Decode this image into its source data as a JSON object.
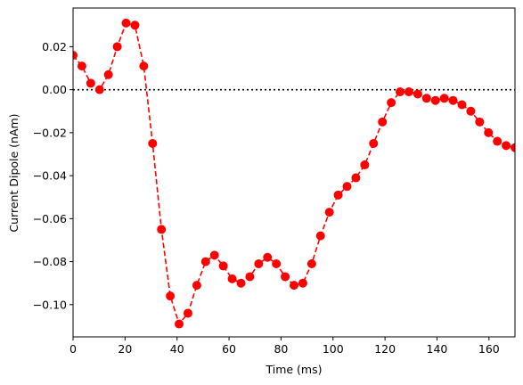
{
  "chart_data": {
    "type": "line",
    "xlabel": "Time (ms)",
    "ylabel": "Current Dipole (nAm)",
    "xlim": [
      0,
      170
    ],
    "ylim": [
      -0.115,
      0.038
    ],
    "x_ticks": [
      0,
      20,
      40,
      60,
      80,
      100,
      120,
      140,
      160
    ],
    "y_ticks": [
      -0.1,
      -0.08,
      -0.06,
      -0.04,
      -0.02,
      0.0,
      0.02
    ],
    "x_tick_labels": [
      "0",
      "20",
      "40",
      "60",
      "80",
      "100",
      "120",
      "140",
      "160"
    ],
    "y_tick_labels": [
      "−0.10",
      "−0.08",
      "−0.06",
      "−0.04",
      "−0.02",
      "0.00",
      "0.02"
    ],
    "grid": false,
    "reference_line": {
      "y": 0.0,
      "style": "dotted",
      "color": "#000000"
    },
    "series": [
      {
        "color": "#ff0000",
        "line_style": "dashed",
        "marker": "circle",
        "x": [
          0,
          3.4,
          6.8,
          10.2,
          13.6,
          17.0,
          20.4,
          23.8,
          27.2,
          30.6,
          34.0,
          37.4,
          40.8,
          44.2,
          47.6,
          51.0,
          54.4,
          57.8,
          61.2,
          64.6,
          68.0,
          71.4,
          74.8,
          78.2,
          81.6,
          85.0,
          88.4,
          91.8,
          95.2,
          98.6,
          102.0,
          105.4,
          108.8,
          112.2,
          115.6,
          119.0,
          122.4,
          125.8,
          129.2,
          132.6,
          136.0,
          139.4,
          142.8,
          146.2,
          149.6,
          153.0,
          156.4,
          159.8,
          163.2,
          166.6,
          170.0
        ],
        "y": [
          0.016,
          0.011,
          0.003,
          0.0,
          0.007,
          0.02,
          0.031,
          0.03,
          0.011,
          -0.025,
          -0.065,
          -0.096,
          -0.109,
          -0.104,
          -0.091,
          -0.08,
          -0.077,
          -0.082,
          -0.088,
          -0.09,
          -0.087,
          -0.081,
          -0.078,
          -0.081,
          -0.087,
          -0.091,
          -0.09,
          -0.081,
          -0.068,
          -0.057,
          -0.049,
          -0.045,
          -0.041,
          -0.035,
          -0.025,
          -0.015,
          -0.006,
          -0.001,
          -0.001,
          -0.002,
          -0.004,
          -0.005,
          -0.004,
          -0.005,
          -0.007,
          -0.01,
          -0.015,
          -0.02,
          -0.024,
          -0.026,
          -0.027
        ]
      }
    ]
  }
}
